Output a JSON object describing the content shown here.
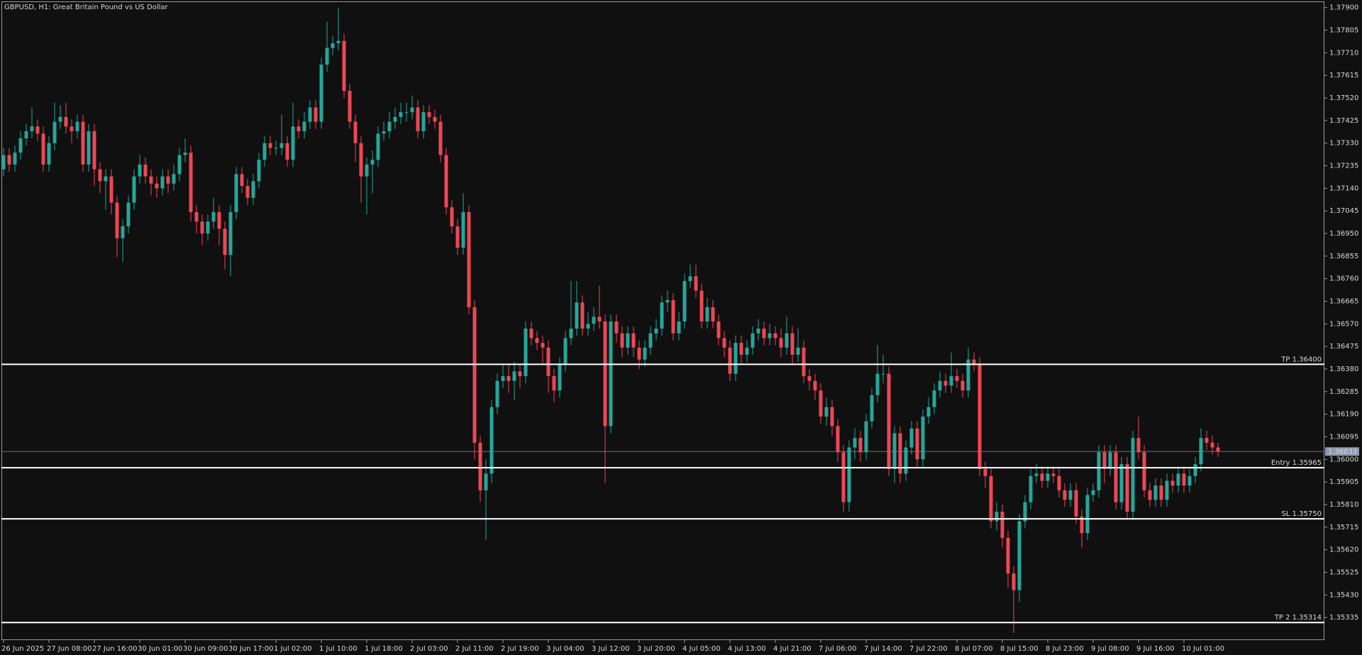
{
  "chart_data": {
    "type": "candlestick",
    "title": "GBPUSD, H1:  Great Britain Pound vs US Dollar",
    "up_color": "#26a69a",
    "down_color": "#ef4655",
    "level_color": "#ffffff",
    "grid": false,
    "ylim": [
      1.3524,
      1.37926
    ],
    "yticks": [
      {
        "value": 1.379,
        "label": "1.37900"
      },
      {
        "value": 1.37805,
        "label": "1.37805"
      },
      {
        "value": 1.3771,
        "label": "1.37710"
      },
      {
        "value": 1.37615,
        "label": "1.37615"
      },
      {
        "value": 1.3752,
        "label": "1.37520"
      },
      {
        "value": 1.37425,
        "label": "1.37425"
      },
      {
        "value": 1.3733,
        "label": "1.37330"
      },
      {
        "value": 1.37235,
        "label": "1.37235"
      },
      {
        "value": 1.3714,
        "label": "1.37140"
      },
      {
        "value": 1.37045,
        "label": "1.37045"
      },
      {
        "value": 1.3695,
        "label": "1.36950"
      },
      {
        "value": 1.36855,
        "label": "1.36855"
      },
      {
        "value": 1.3676,
        "label": "1.36760"
      },
      {
        "value": 1.36665,
        "label": "1.36665"
      },
      {
        "value": 1.3657,
        "label": "1.36570"
      },
      {
        "value": 1.36475,
        "label": "1.36475"
      },
      {
        "value": 1.3638,
        "label": "1.36380"
      },
      {
        "value": 1.36285,
        "label": "1.36285"
      },
      {
        "value": 1.3619,
        "label": "1.36190"
      },
      {
        "value": 1.36095,
        "label": "1.36095"
      },
      {
        "value": 1.36,
        "label": "1.36000"
      },
      {
        "value": 1.35905,
        "label": "1.35905"
      },
      {
        "value": 1.3581,
        "label": "1.35810"
      },
      {
        "value": 1.35715,
        "label": "1.35715"
      },
      {
        "value": 1.3562,
        "label": "1.35620"
      },
      {
        "value": 1.35525,
        "label": "1.35525"
      },
      {
        "value": 1.3543,
        "label": "1.35430"
      },
      {
        "value": 1.35335,
        "label": "1.35335"
      }
    ],
    "current_price": 1.36033,
    "levels": [
      {
        "label": "TP 1.36400",
        "value": 1.364
      },
      {
        "label": "Entry 1.35965",
        "value": 1.35965
      },
      {
        "label": "SL 1.35750",
        "value": 1.3575
      },
      {
        "label": "TP 2 1.35314",
        "value": 1.35314
      }
    ],
    "categories": [
      "26 Jun 2025",
      null,
      null,
      null,
      null,
      null,
      null,
      null,
      "27 Jun 08:00",
      null,
      null,
      null,
      null,
      null,
      null,
      null,
      "27 Jun 16:00",
      null,
      null,
      null,
      null,
      null,
      null,
      null,
      "30 Jun 01:00",
      null,
      null,
      null,
      null,
      null,
      null,
      null,
      "30 Jun 09:00",
      null,
      null,
      null,
      null,
      null,
      null,
      null,
      "30 Jun 17:00",
      null,
      null,
      null,
      null,
      null,
      null,
      null,
      "1 Jul 02:00",
      null,
      null,
      null,
      null,
      null,
      null,
      null,
      "1 Jul 10:00",
      null,
      null,
      null,
      null,
      null,
      null,
      null,
      "1 Jul 18:00",
      null,
      null,
      null,
      null,
      null,
      null,
      null,
      "2 Jul 03:00",
      null,
      null,
      null,
      null,
      null,
      null,
      null,
      "2 Jul 11:00",
      null,
      null,
      null,
      null,
      null,
      null,
      null,
      "2 Jul 19:00",
      null,
      null,
      null,
      null,
      null,
      null,
      null,
      "3 Jul 04:00",
      null,
      null,
      null,
      null,
      null,
      null,
      null,
      "3 Jul 12:00",
      null,
      null,
      null,
      null,
      null,
      null,
      null,
      "3 Jul 20:00",
      null,
      null,
      null,
      null,
      null,
      null,
      null,
      "4 Jul 05:00",
      null,
      null,
      null,
      null,
      null,
      null,
      null,
      "4 Jul 13:00",
      null,
      null,
      null,
      null,
      null,
      null,
      null,
      "4 Jul 21:00",
      null,
      null,
      null,
      null,
      null,
      null,
      null,
      "7 Jul 06:00",
      null,
      null,
      null,
      null,
      null,
      null,
      null,
      "7 Jul 14:00",
      null,
      null,
      null,
      null,
      null,
      null,
      null,
      "7 Jul 22:00",
      null,
      null,
      null,
      null,
      null,
      null,
      null,
      "8 Jul 07:00",
      null,
      null,
      null,
      null,
      null,
      null,
      null,
      "8 Jul 15:00",
      null,
      null,
      null,
      null,
      null,
      null,
      null,
      "8 Jul 23:00",
      null,
      null,
      null,
      null,
      null,
      null,
      null,
      "9 Jul 08:00",
      null,
      null,
      null,
      null,
      null,
      null,
      null,
      "9 Jul 16:00",
      null,
      null,
      null,
      null,
      null,
      null,
      null,
      "10 Jul 01:00",
      null,
      null,
      null,
      null,
      null,
      null
    ],
    "open": [
      1.3722,
      1.3728,
      1.3724,
      1.3729,
      1.3735,
      1.3738,
      1.374,
      1.3737,
      1.3724,
      1.3733,
      1.3742,
      1.3744,
      1.374,
      1.3738,
      1.3742,
      1.3724,
      1.3738,
      1.3722,
      1.3717,
      1.3719,
      1.3708,
      1.3693,
      1.3698,
      1.3708,
      1.3719,
      1.3724,
      1.3719,
      1.3716,
      1.3714,
      1.3719,
      1.3716,
      1.372,
      1.3728,
      1.3729,
      1.3704,
      1.37,
      1.3695,
      1.37,
      1.3704,
      1.3697,
      1.3686,
      1.3704,
      1.372,
      1.3715,
      1.371,
      1.3717,
      1.3726,
      1.3733,
      1.3731,
      1.3731,
      1.3733,
      1.3726,
      1.374,
      1.3738,
      1.3742,
      1.3748,
      1.3742,
      1.3766,
      1.3773,
      1.3775,
      1.3776,
      1.3755,
      1.3742,
      1.3733,
      1.3719,
      1.3724,
      1.3726,
      1.3737,
      1.3738,
      1.3742,
      1.3744,
      1.3746,
      1.3746,
      1.3748,
      1.3738,
      1.3746,
      1.3744,
      1.3742,
      1.3728,
      1.3706,
      1.3698,
      1.3689,
      1.3704,
      1.3664,
      1.3607,
      1.3587,
      1.3594,
      1.3622,
      1.3633,
      1.3635,
      1.3633,
      1.3637,
      1.3635,
      1.3655,
      1.3651,
      1.3649,
      1.3647,
      1.3635,
      1.3629,
      1.364,
      1.3651,
      1.3655,
      1.3666,
      1.3655,
      1.3657,
      1.366,
      1.3658,
      1.3614,
      1.3658,
      1.3653,
      1.3647,
      1.3653,
      1.3647,
      1.3642,
      1.3647,
      1.3653,
      1.3655,
      1.3666,
      1.3667,
      1.3653,
      1.3658,
      1.3675,
      1.3677,
      1.3671,
      1.3658,
      1.3664,
      1.3658,
      1.3651,
      1.3647,
      1.3636,
      1.3649,
      1.3644,
      1.3647,
      1.3653,
      1.3655,
      1.3651,
      1.3653,
      1.3651,
      1.3647,
      1.3653,
      1.3644,
      1.3647,
      1.3635,
      1.3633,
      1.3629,
      1.3618,
      1.3622,
      1.3614,
      1.3603,
      1.3582,
      1.3605,
      1.3609,
      1.3603,
      1.3616,
      1.3627,
      1.3636,
      1.3636,
      1.3596,
      1.3611,
      1.3594,
      1.3605,
      1.3613,
      1.36,
      1.3618,
      1.3622,
      1.3629,
      1.3633,
      1.3631,
      1.3635,
      1.3633,
      1.3629,
      1.3642,
      1.364,
      1.3596,
      1.3593,
      1.3574,
      1.3578,
      1.3567,
      1.3552,
      1.3545,
      1.3574,
      1.3582,
      1.3593,
      1.3594,
      1.3591,
      1.3594,
      1.3593,
      1.3587,
      1.3583,
      1.3587,
      1.3576,
      1.3569,
      1.3585,
      1.3587,
      1.3603,
      1.3596,
      1.3603,
      1.3582,
      1.3598,
      1.3578,
      1.3609,
      1.3603,
      1.3587,
      1.3583,
      1.3589,
      1.3583,
      1.3591,
      1.3589,
      1.3594,
      1.3589,
      1.3593,
      1.3598,
      1.3609,
      1.3607,
      1.3605
    ],
    "high": [
      1.3731,
      1.3731,
      1.3732,
      1.3738,
      1.3741,
      1.3748,
      1.3743,
      1.374,
      1.3736,
      1.375,
      1.3749,
      1.375,
      1.3743,
      1.3745,
      1.3745,
      1.3741,
      1.3741,
      1.3725,
      1.3722,
      1.3722,
      1.3711,
      1.3701,
      1.3711,
      1.3722,
      1.3728,
      1.3727,
      1.3722,
      1.3719,
      1.3722,
      1.3722,
      1.3724,
      1.3731,
      1.3735,
      1.3732,
      1.3707,
      1.3703,
      1.3703,
      1.371,
      1.3707,
      1.37,
      1.3707,
      1.3723,
      1.3723,
      1.3718,
      1.372,
      1.3729,
      1.3736,
      1.3736,
      1.3734,
      1.3745,
      1.3736,
      1.375,
      1.3743,
      1.3746,
      1.3751,
      1.3751,
      1.3769,
      1.3784,
      1.3778,
      1.379,
      1.3779,
      1.3758,
      1.3745,
      1.3736,
      1.3727,
      1.373,
      1.374,
      1.3742,
      1.3746,
      1.3748,
      1.375,
      1.375,
      1.3753,
      1.3751,
      1.3749,
      1.3749,
      1.3747,
      1.3745,
      1.3731,
      1.3709,
      1.3701,
      1.3712,
      1.3707,
      1.3667,
      1.361,
      1.36,
      1.3625,
      1.3636,
      1.364,
      1.364,
      1.3641,
      1.364,
      1.3658,
      1.3658,
      1.3654,
      1.3652,
      1.365,
      1.3638,
      1.3643,
      1.3654,
      1.3675,
      1.3675,
      1.3669,
      1.3662,
      1.3664,
      1.3673,
      1.3661,
      1.3661,
      1.3661,
      1.3656,
      1.3656,
      1.3656,
      1.365,
      1.365,
      1.3656,
      1.3659,
      1.3669,
      1.3671,
      1.367,
      1.3662,
      1.3678,
      1.3682,
      1.3682,
      1.3674,
      1.3668,
      1.3667,
      1.3661,
      1.3654,
      1.365,
      1.3652,
      1.3652,
      1.365,
      1.3656,
      1.3659,
      1.3658,
      1.3657,
      1.3656,
      1.3655,
      1.366,
      1.3656,
      1.3655,
      1.365,
      1.3638,
      1.3636,
      1.3632,
      1.3626,
      1.3625,
      1.3617,
      1.3606,
      1.3608,
      1.3613,
      1.3612,
      1.3619,
      1.363,
      1.3648,
      1.3644,
      1.3639,
      1.3614,
      1.3614,
      1.3608,
      1.3616,
      1.3616,
      1.3621,
      1.3626,
      1.3632,
      1.3637,
      1.3636,
      1.3645,
      1.3638,
      1.3636,
      1.3647,
      1.3645,
      1.3643,
      1.3599,
      1.3596,
      1.3582,
      1.3581,
      1.357,
      1.3555,
      1.3577,
      1.3585,
      1.3596,
      1.3598,
      1.3597,
      1.3597,
      1.3597,
      1.3596,
      1.359,
      1.359,
      1.359,
      1.3579,
      1.3588,
      1.359,
      1.3606,
      1.3606,
      1.3606,
      1.3606,
      1.3601,
      1.3601,
      1.3612,
      1.3618,
      1.3606,
      1.359,
      1.3592,
      1.3592,
      1.3594,
      1.3594,
      1.3597,
      1.3597,
      1.3596,
      1.3601,
      1.3613,
      1.3612,
      1.361,
      1.3607
    ],
    "low": [
      1.3719,
      1.3721,
      1.3721,
      1.3726,
      1.3732,
      1.3735,
      1.3734,
      1.3721,
      1.3721,
      1.373,
      1.3739,
      1.3737,
      1.3733,
      1.3735,
      1.3721,
      1.3721,
      1.3715,
      1.3712,
      1.3705,
      1.3703,
      1.3685,
      1.3683,
      1.3695,
      1.3705,
      1.3716,
      1.3716,
      1.3711,
      1.371,
      1.3711,
      1.3712,
      1.3713,
      1.3717,
      1.3725,
      1.37,
      1.3695,
      1.369,
      1.3692,
      1.3697,
      1.369,
      1.368,
      1.3677,
      1.3701,
      1.3712,
      1.3707,
      1.3707,
      1.3714,
      1.3723,
      1.3728,
      1.3728,
      1.3728,
      1.3723,
      1.3723,
      1.3735,
      1.3735,
      1.3739,
      1.3739,
      1.3739,
      1.3763,
      1.377,
      1.3772,
      1.3752,
      1.3739,
      1.3725,
      1.3708,
      1.3703,
      1.3712,
      1.3723,
      1.3734,
      1.3735,
      1.3739,
      1.3741,
      1.3742,
      1.3743,
      1.3735,
      1.3735,
      1.3741,
      1.3739,
      1.3725,
      1.3703,
      1.3695,
      1.3686,
      1.3686,
      1.3661,
      1.36,
      1.3582,
      1.3566,
      1.359,
      1.3619,
      1.363,
      1.3628,
      1.3625,
      1.363,
      1.3632,
      1.3648,
      1.3646,
      1.364,
      1.3628,
      1.3624,
      1.3626,
      1.3637,
      1.3648,
      1.3652,
      1.3652,
      1.3652,
      1.3654,
      1.3655,
      1.359,
      1.3611,
      1.3649,
      1.3643,
      1.3644,
      1.3643,
      1.3638,
      1.3639,
      1.3644,
      1.365,
      1.3652,
      1.3662,
      1.365,
      1.365,
      1.3655,
      1.3672,
      1.3668,
      1.3655,
      1.3655,
      1.3655,
      1.3648,
      1.3643,
      1.3633,
      1.3633,
      1.364,
      1.3641,
      1.3644,
      1.365,
      1.3648,
      1.3648,
      1.3648,
      1.3643,
      1.3644,
      1.364,
      1.3641,
      1.3632,
      1.3629,
      1.3625,
      1.3615,
      1.3614,
      1.361,
      1.3599,
      1.3578,
      1.3578,
      1.36,
      1.3599,
      1.36,
      1.3613,
      1.3624,
      1.3632,
      1.3593,
      1.359,
      1.359,
      1.3591,
      1.3602,
      1.3597,
      1.3597,
      1.3615,
      1.3619,
      1.3626,
      1.3628,
      1.3628,
      1.363,
      1.3626,
      1.3626,
      1.3637,
      1.3593,
      1.3588,
      1.3571,
      1.357,
      1.3563,
      1.3546,
      1.3527,
      1.354,
      1.3571,
      1.3579,
      1.359,
      1.3588,
      1.3588,
      1.359,
      1.3584,
      1.358,
      1.358,
      1.3573,
      1.3563,
      1.3566,
      1.3582,
      1.3584,
      1.359,
      1.3593,
      1.3579,
      1.3579,
      1.3575,
      1.3575,
      1.36,
      1.3584,
      1.358,
      1.358,
      1.358,
      1.358,
      1.3586,
      1.3586,
      1.3586,
      1.3586,
      1.359,
      1.3595,
      1.3604,
      1.3602,
      1.3601
    ],
    "close": [
      1.3728,
      1.3724,
      1.3729,
      1.3735,
      1.3738,
      1.374,
      1.3737,
      1.3724,
      1.3733,
      1.3742,
      1.3744,
      1.374,
      1.3738,
      1.3742,
      1.3724,
      1.3738,
      1.3722,
      1.3717,
      1.3719,
      1.3708,
      1.3693,
      1.3698,
      1.3708,
      1.3719,
      1.3724,
      1.3719,
      1.3716,
      1.3714,
      1.3719,
      1.3716,
      1.372,
      1.3728,
      1.3729,
      1.3704,
      1.37,
      1.3695,
      1.37,
      1.3704,
      1.3697,
      1.3686,
      1.3704,
      1.372,
      1.3715,
      1.371,
      1.3717,
      1.3726,
      1.3733,
      1.3731,
      1.3731,
      1.3733,
      1.3726,
      1.374,
      1.3738,
      1.3742,
      1.3748,
      1.3742,
      1.3766,
      1.3773,
      1.3775,
      1.3776,
      1.3755,
      1.3742,
      1.3733,
      1.3719,
      1.3724,
      1.3726,
      1.3737,
      1.3738,
      1.3742,
      1.3744,
      1.3746,
      1.3746,
      1.3748,
      1.3738,
      1.3746,
      1.3744,
      1.3742,
      1.3728,
      1.3706,
      1.3698,
      1.3689,
      1.3704,
      1.3664,
      1.3607,
      1.3587,
      1.3594,
      1.3622,
      1.3633,
      1.3635,
      1.3633,
      1.3637,
      1.3635,
      1.3655,
      1.3651,
      1.3649,
      1.3647,
      1.3635,
      1.3629,
      1.364,
      1.3651,
      1.3655,
      1.3666,
      1.3655,
      1.3657,
      1.366,
      1.3658,
      1.3614,
      1.3658,
      1.3653,
      1.3647,
      1.3653,
      1.3647,
      1.3642,
      1.3647,
      1.3653,
      1.3655,
      1.3666,
      1.3667,
      1.3653,
      1.3658,
      1.3675,
      1.3677,
      1.3671,
      1.3658,
      1.3664,
      1.3658,
      1.3651,
      1.3647,
      1.3636,
      1.3649,
      1.3644,
      1.3647,
      1.3653,
      1.3655,
      1.3651,
      1.3653,
      1.3651,
      1.3647,
      1.3653,
      1.3644,
      1.3647,
      1.3635,
      1.3633,
      1.3629,
      1.3618,
      1.3622,
      1.3614,
      1.3603,
      1.3582,
      1.3605,
      1.3609,
      1.3603,
      1.3616,
      1.3627,
      1.3636,
      1.3636,
      1.3596,
      1.3611,
      1.3594,
      1.3605,
      1.3613,
      1.36,
      1.3618,
      1.3622,
      1.3629,
      1.3633,
      1.3631,
      1.3635,
      1.3633,
      1.3629,
      1.3642,
      1.364,
      1.3596,
      1.3593,
      1.3574,
      1.3578,
      1.3567,
      1.3552,
      1.3545,
      1.3574,
      1.3582,
      1.3593,
      1.3594,
      1.3591,
      1.3594,
      1.3593,
      1.3587,
      1.3583,
      1.3587,
      1.3576,
      1.3569,
      1.3585,
      1.3587,
      1.3603,
      1.3596,
      1.3603,
      1.3582,
      1.3598,
      1.3578,
      1.3609,
      1.3603,
      1.3587,
      1.3583,
      1.3589,
      1.3583,
      1.3591,
      1.3589,
      1.3594,
      1.3589,
      1.3593,
      1.3598,
      1.3609,
      1.3607,
      1.3605,
      1.36033
    ]
  }
}
